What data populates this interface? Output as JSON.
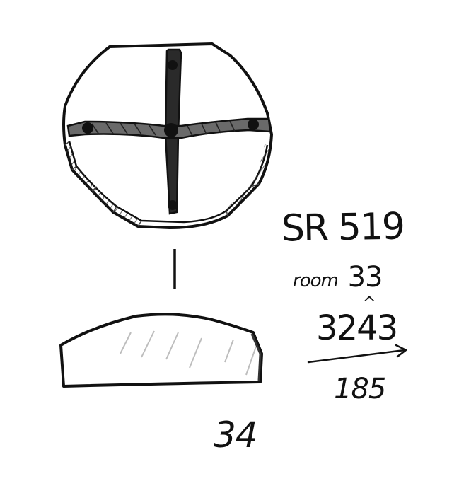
{
  "object_label": "SR 519",
  "room_prefix": "room",
  "room_number": "33",
  "context_number": "3243",
  "context_caret": "^",
  "sub_number": "185",
  "figure_number": "34",
  "ink_color": "#111111",
  "paper_color": "#ffffff"
}
